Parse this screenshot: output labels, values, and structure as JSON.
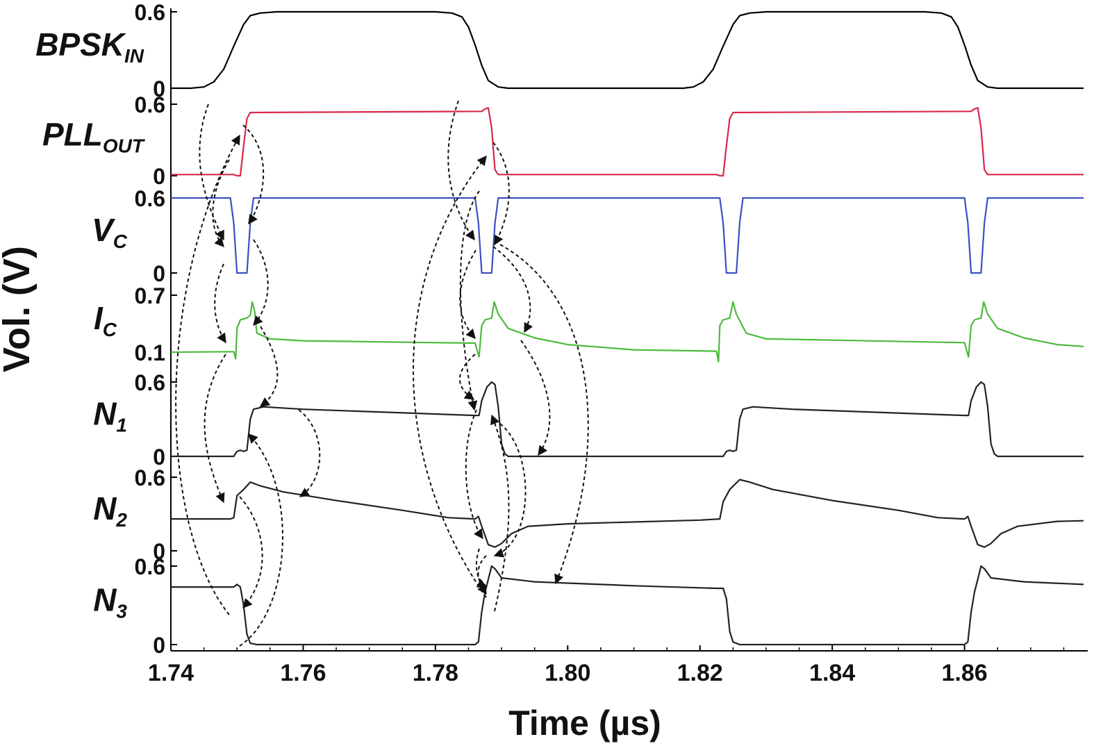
{
  "chart_data": {
    "type": "line",
    "xlabel": "Time (µs)",
    "ylabel": "Vol. (V)",
    "xlim": [
      1.74,
      1.878
    ],
    "x_ticks": [
      "1.74",
      "1.76",
      "1.78",
      "1.80",
      "1.82",
      "1.84",
      "1.86"
    ],
    "grid": false,
    "legend": "none",
    "series": [
      {
        "name": "BPSK",
        "subscript": "IN",
        "color": "#000000",
        "ylim": [
          0,
          0.6
        ],
        "yticks": [
          "0.6",
          "0"
        ],
        "points": [
          [
            1.74,
            0
          ],
          [
            1.743,
            0
          ],
          [
            1.745,
            0.01
          ],
          [
            1.7465,
            0.05
          ],
          [
            1.748,
            0.15
          ],
          [
            1.7495,
            0.33
          ],
          [
            1.751,
            0.5
          ],
          [
            1.752,
            0.57
          ],
          [
            1.7535,
            0.59
          ],
          [
            1.756,
            0.6
          ],
          [
            1.78,
            0.6
          ],
          [
            1.7825,
            0.59
          ],
          [
            1.784,
            0.56
          ],
          [
            1.785,
            0.48
          ],
          [
            1.786,
            0.34
          ],
          [
            1.787,
            0.18
          ],
          [
            1.788,
            0.06
          ],
          [
            1.7895,
            0.01
          ],
          [
            1.791,
            0
          ],
          [
            1.8175,
            0
          ],
          [
            1.819,
            0.01
          ],
          [
            1.8205,
            0.05
          ],
          [
            1.822,
            0.15
          ],
          [
            1.8235,
            0.33
          ],
          [
            1.825,
            0.5
          ],
          [
            1.826,
            0.57
          ],
          [
            1.8275,
            0.59
          ],
          [
            1.83,
            0.6
          ],
          [
            1.854,
            0.6
          ],
          [
            1.8565,
            0.59
          ],
          [
            1.858,
            0.56
          ],
          [
            1.859,
            0.48
          ],
          [
            1.86,
            0.34
          ],
          [
            1.861,
            0.18
          ],
          [
            1.862,
            0.06
          ],
          [
            1.8635,
            0.01
          ],
          [
            1.865,
            0
          ],
          [
            1.878,
            0
          ]
        ]
      },
      {
        "name": "PLL",
        "subscript": "OUT",
        "color": "#d8274a",
        "ylim": [
          0,
          0.6
        ],
        "yticks": [
          "0.6",
          "0"
        ],
        "points": [
          [
            1.74,
            0.01
          ],
          [
            1.7495,
            0.01
          ],
          [
            1.75,
            0.0
          ],
          [
            1.7505,
            0.0
          ],
          [
            1.751,
            0.25
          ],
          [
            1.7515,
            0.48
          ],
          [
            1.752,
            0.53
          ],
          [
            1.787,
            0.54
          ],
          [
            1.7875,
            0.56
          ],
          [
            1.788,
            0.57
          ],
          [
            1.7885,
            0.4
          ],
          [
            1.789,
            0.05
          ],
          [
            1.7895,
            0.01
          ],
          [
            1.8225,
            0.01
          ],
          [
            1.823,
            0.0
          ],
          [
            1.8235,
            0.0
          ],
          [
            1.824,
            0.25
          ],
          [
            1.8245,
            0.48
          ],
          [
            1.825,
            0.53
          ],
          [
            1.861,
            0.54
          ],
          [
            1.8615,
            0.56
          ],
          [
            1.862,
            0.57
          ],
          [
            1.8625,
            0.4
          ],
          [
            1.863,
            0.05
          ],
          [
            1.8635,
            0.01
          ],
          [
            1.878,
            0.01
          ]
        ]
      },
      {
        "name": "V",
        "subscript": "C",
        "color": "#3b4fc4",
        "ylim": [
          0,
          0.6
        ],
        "yticks": [
          "0.6",
          "0"
        ],
        "points": [
          [
            1.74,
            0.6
          ],
          [
            1.749,
            0.6
          ],
          [
            1.7495,
            0.4
          ],
          [
            1.75,
            0.0
          ],
          [
            1.7515,
            0.0
          ],
          [
            1.752,
            0.4
          ],
          [
            1.7525,
            0.6
          ],
          [
            1.786,
            0.6
          ],
          [
            1.7865,
            0.4
          ],
          [
            1.787,
            0.0
          ],
          [
            1.7885,
            0.0
          ],
          [
            1.789,
            0.4
          ],
          [
            1.7895,
            0.6
          ],
          [
            1.823,
            0.6
          ],
          [
            1.8235,
            0.4
          ],
          [
            1.824,
            0.0
          ],
          [
            1.8255,
            0.0
          ],
          [
            1.826,
            0.4
          ],
          [
            1.8265,
            0.6
          ],
          [
            1.86,
            0.6
          ],
          [
            1.8605,
            0.4
          ],
          [
            1.861,
            0.0
          ],
          [
            1.8625,
            0.0
          ],
          [
            1.863,
            0.4
          ],
          [
            1.8635,
            0.6
          ],
          [
            1.878,
            0.6
          ]
        ]
      },
      {
        "name": "I",
        "subscript": "C",
        "color": "#4cba3c",
        "ylim": [
          0.1,
          0.7
        ],
        "yticks": [
          "0.7",
          "0.1"
        ],
        "points": [
          [
            1.74,
            0.1
          ],
          [
            1.7495,
            0.105
          ],
          [
            1.7498,
            0.03
          ],
          [
            1.75,
            0.35
          ],
          [
            1.7505,
            0.44
          ],
          [
            1.751,
            0.45
          ],
          [
            1.7515,
            0.46
          ],
          [
            1.752,
            0.49
          ],
          [
            1.7523,
            0.63
          ],
          [
            1.7527,
            0.52
          ],
          [
            1.753,
            0.3
          ],
          [
            1.755,
            0.24
          ],
          [
            1.76,
            0.22
          ],
          [
            1.78,
            0.2
          ],
          [
            1.786,
            0.195
          ],
          [
            1.7863,
            0.12
          ],
          [
            1.7866,
            0.05
          ],
          [
            1.787,
            0.38
          ],
          [
            1.7875,
            0.44
          ],
          [
            1.7885,
            0.46
          ],
          [
            1.7889,
            0.63
          ],
          [
            1.7895,
            0.5
          ],
          [
            1.791,
            0.35
          ],
          [
            1.795,
            0.25
          ],
          [
            1.8,
            0.18
          ],
          [
            1.81,
            0.125
          ],
          [
            1.8225,
            0.11
          ],
          [
            1.8228,
            0.0
          ],
          [
            1.823,
            0.38
          ],
          [
            1.8235,
            0.44
          ],
          [
            1.8245,
            0.46
          ],
          [
            1.825,
            0.63
          ],
          [
            1.8255,
            0.5
          ],
          [
            1.827,
            0.3
          ],
          [
            1.83,
            0.24
          ],
          [
            1.86,
            0.2
          ],
          [
            1.8603,
            0.12
          ],
          [
            1.8606,
            0.05
          ],
          [
            1.861,
            0.38
          ],
          [
            1.8615,
            0.44
          ],
          [
            1.8625,
            0.46
          ],
          [
            1.8629,
            0.63
          ],
          [
            1.8635,
            0.5
          ],
          [
            1.865,
            0.35
          ],
          [
            1.869,
            0.25
          ],
          [
            1.874,
            0.18
          ],
          [
            1.878,
            0.16
          ]
        ]
      },
      {
        "name": "N",
        "subscript": "1",
        "color": "#222222",
        "ylim": [
          0,
          0.6
        ],
        "yticks": [
          "0.6",
          "0"
        ],
        "points": [
          [
            1.74,
            0
          ],
          [
            1.7495,
            0
          ],
          [
            1.75,
            0.04
          ],
          [
            1.7505,
            0.05
          ],
          [
            1.751,
            0.04
          ],
          [
            1.7515,
            0.05
          ],
          [
            1.752,
            0.3
          ],
          [
            1.7525,
            0.38
          ],
          [
            1.754,
            0.4
          ],
          [
            1.76,
            0.38
          ],
          [
            1.786,
            0.33
          ],
          [
            1.7866,
            0.33
          ],
          [
            1.787,
            0.45
          ],
          [
            1.7878,
            0.56
          ],
          [
            1.7885,
            0.6
          ],
          [
            1.789,
            0.58
          ],
          [
            1.7895,
            0.4
          ],
          [
            1.79,
            0.1
          ],
          [
            1.7905,
            0.02
          ],
          [
            1.791,
            0
          ],
          [
            1.8235,
            0
          ],
          [
            1.824,
            0.04
          ],
          [
            1.8245,
            0.05
          ],
          [
            1.825,
            0.04
          ],
          [
            1.8255,
            0.05
          ],
          [
            1.826,
            0.3
          ],
          [
            1.8265,
            0.38
          ],
          [
            1.828,
            0.4
          ],
          [
            1.834,
            0.38
          ],
          [
            1.86,
            0.33
          ],
          [
            1.8606,
            0.33
          ],
          [
            1.861,
            0.45
          ],
          [
            1.8618,
            0.56
          ],
          [
            1.8625,
            0.6
          ],
          [
            1.863,
            0.58
          ],
          [
            1.8635,
            0.4
          ],
          [
            1.864,
            0.1
          ],
          [
            1.8645,
            0.02
          ],
          [
            1.865,
            0
          ],
          [
            1.878,
            0
          ]
        ]
      },
      {
        "name": "N",
        "subscript": "2",
        "color": "#222222",
        "ylim": [
          0,
          0.6
        ],
        "yticks": [
          "0.6",
          "0"
        ],
        "points": [
          [
            1.74,
            0.26
          ],
          [
            1.749,
            0.26
          ],
          [
            1.7495,
            0.27
          ],
          [
            1.75,
            0.45
          ],
          [
            1.751,
            0.5
          ],
          [
            1.752,
            0.56
          ],
          [
            1.7535,
            0.53
          ],
          [
            1.757,
            0.48
          ],
          [
            1.765,
            0.41
          ],
          [
            1.775,
            0.33
          ],
          [
            1.782,
            0.27
          ],
          [
            1.786,
            0.26
          ],
          [
            1.7865,
            0.28
          ],
          [
            1.787,
            0.2
          ],
          [
            1.788,
            0.05
          ],
          [
            1.789,
            0.03
          ],
          [
            1.79,
            0.06
          ],
          [
            1.7915,
            0.14
          ],
          [
            1.794,
            0.2
          ],
          [
            1.8,
            0.22
          ],
          [
            1.82,
            0.25
          ],
          [
            1.823,
            0.26
          ],
          [
            1.8235,
            0.4
          ],
          [
            1.8245,
            0.5
          ],
          [
            1.826,
            0.58
          ],
          [
            1.8275,
            0.56
          ],
          [
            1.831,
            0.5
          ],
          [
            1.84,
            0.41
          ],
          [
            1.85,
            0.33
          ],
          [
            1.856,
            0.27
          ],
          [
            1.86,
            0.26
          ],
          [
            1.8605,
            0.28
          ],
          [
            1.861,
            0.2
          ],
          [
            1.862,
            0.05
          ],
          [
            1.863,
            0.03
          ],
          [
            1.864,
            0.06
          ],
          [
            1.8655,
            0.14
          ],
          [
            1.868,
            0.2
          ],
          [
            1.874,
            0.24
          ],
          [
            1.878,
            0.245
          ]
        ]
      },
      {
        "name": "N",
        "subscript": "3",
        "color": "#222222",
        "ylim": [
          0,
          0.6
        ],
        "yticks": [
          "0.6",
          "0"
        ],
        "points": [
          [
            1.74,
            0.44
          ],
          [
            1.7495,
            0.44
          ],
          [
            1.75,
            0.46
          ],
          [
            1.7505,
            0.44
          ],
          [
            1.751,
            0.3
          ],
          [
            1.7515,
            0.08
          ],
          [
            1.752,
            0.01
          ],
          [
            1.753,
            0
          ],
          [
            1.786,
            0
          ],
          [
            1.7865,
            0.02
          ],
          [
            1.787,
            0.25
          ],
          [
            1.7875,
            0.4
          ],
          [
            1.788,
            0.5
          ],
          [
            1.7885,
            0.6
          ],
          [
            1.789,
            0.58
          ],
          [
            1.79,
            0.51
          ],
          [
            1.795,
            0.48
          ],
          [
            1.81,
            0.45
          ],
          [
            1.8225,
            0.43
          ],
          [
            1.8235,
            0.43
          ],
          [
            1.824,
            0.35
          ],
          [
            1.8245,
            0.1
          ],
          [
            1.825,
            0.02
          ],
          [
            1.826,
            0
          ],
          [
            1.86,
            0
          ],
          [
            1.8605,
            0.02
          ],
          [
            1.861,
            0.25
          ],
          [
            1.8615,
            0.4
          ],
          [
            1.862,
            0.5
          ],
          [
            1.8625,
            0.6
          ],
          [
            1.863,
            0.58
          ],
          [
            1.864,
            0.51
          ],
          [
            1.869,
            0.48
          ],
          [
            1.878,
            0.46
          ]
        ]
      }
    ]
  }
}
